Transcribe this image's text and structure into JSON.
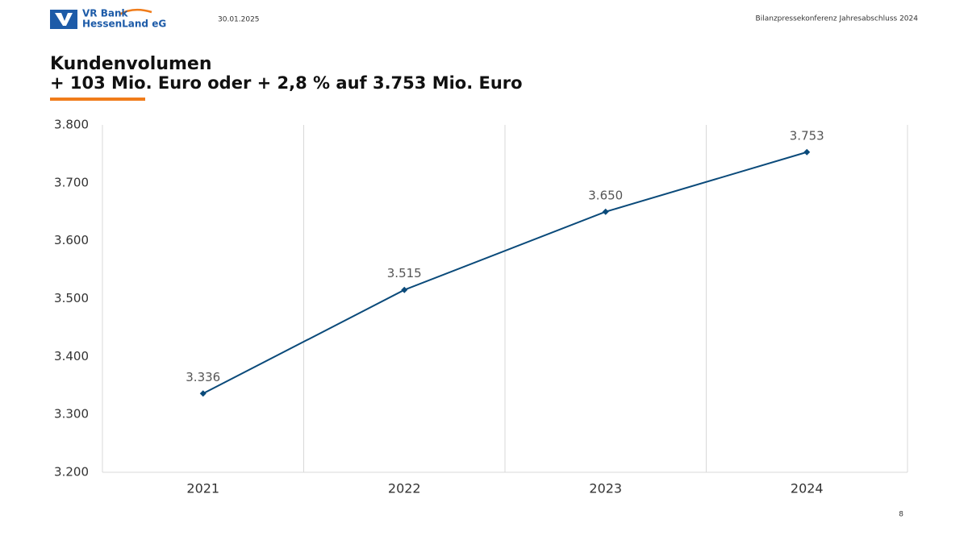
{
  "header": {
    "logo_line1": "VR Bank",
    "logo_line2": "HessenLand eG",
    "date": "30.01.2025",
    "event": "Bilanzpressekonferenz Jahresabschluss 2024"
  },
  "chart_data": {
    "type": "line",
    "title": "Kundenvolumen",
    "subtitle": "+ 103 Mio. Euro oder + 2,8 % auf 3.753 Mio. Euro",
    "categories": [
      "2021",
      "2022",
      "2023",
      "2024"
    ],
    "values": [
      3336,
      3515,
      3650,
      3753
    ],
    "value_labels": [
      "3.336",
      "3.515",
      "3.650",
      "3.753"
    ],
    "color": "#0a4a7a",
    "ylim": [
      3200,
      3800
    ],
    "yticks": [
      {
        "value": 3200,
        "label": "3.200"
      },
      {
        "value": 3300,
        "label": "3.300"
      },
      {
        "value": 3400,
        "label": "3.400"
      },
      {
        "value": 3500,
        "label": "3.500"
      },
      {
        "value": 3600,
        "label": "3.600"
      },
      {
        "value": 3700,
        "label": "3.700"
      },
      {
        "value": 3800,
        "label": "3.800"
      }
    ]
  },
  "page_number": "8"
}
